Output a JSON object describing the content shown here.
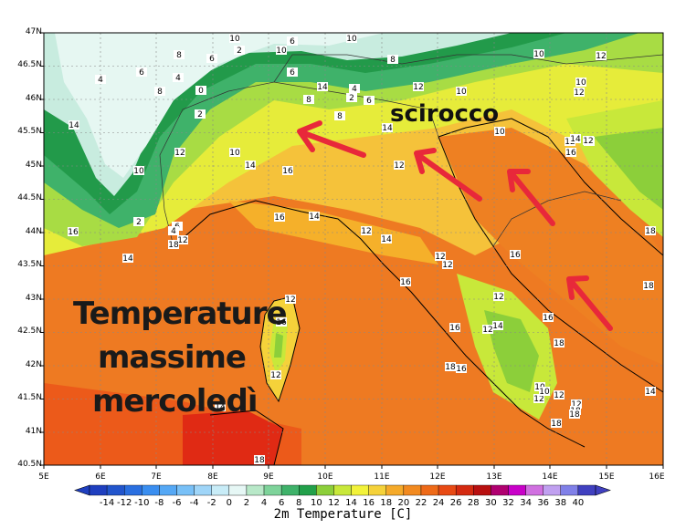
{
  "map": {
    "variable_label": "2m Temperature [C]",
    "lat_ticks": [
      "47N",
      "46.5N",
      "46N",
      "45.5N",
      "45N",
      "44.5N",
      "44N",
      "43.5N",
      "43N",
      "42.5N",
      "42N",
      "41.5N",
      "41N",
      "40.5N"
    ],
    "lon_ticks": [
      "5E",
      "6E",
      "7E",
      "8E",
      "9E",
      "10E",
      "11E",
      "12E",
      "13E",
      "14E",
      "15E",
      "16E"
    ],
    "legend_values": [
      "-14",
      "-12",
      "-10",
      "-8",
      "-6",
      "-4",
      "-2",
      "0",
      "2",
      "4",
      "6",
      "8",
      "10",
      "12",
      "14",
      "16",
      "18",
      "20",
      "22",
      "24",
      "26",
      "28",
      "30",
      "32",
      "34",
      "36",
      "38",
      "40"
    ],
    "legend_colors": [
      "#1f3fbf",
      "#2255cc",
      "#2a6fe0",
      "#3a8ef0",
      "#55a8f5",
      "#78c0f7",
      "#9fd5f8",
      "#c8ecf7",
      "#e6f7f5",
      "#b8e8c8",
      "#7ed39a",
      "#3fb26a",
      "#22a04a",
      "#8ccf3a",
      "#c8e83a",
      "#f2f23a",
      "#f5d23a",
      "#f5aa2a",
      "#f28a20",
      "#ee6a18",
      "#e84a14",
      "#d42a10",
      "#b81010",
      "#b00070",
      "#c800c8",
      "#d070e0",
      "#c0a0f0",
      "#8080e8",
      "#4040c0"
    ],
    "annotations": {
      "title_line1": "Temperature",
      "title_line2": "massime",
      "title_line3": "mercoledì",
      "wind_label": "scirocco"
    },
    "contour_labels": [
      "10",
      "6",
      "10",
      "8",
      "6",
      "2",
      "10",
      "8",
      "10",
      "12",
      "4",
      "0",
      "6",
      "4",
      "8",
      "6",
      "4",
      "2",
      "2",
      "12",
      "8",
      "6",
      "8",
      "10",
      "10",
      "14",
      "10",
      "12",
      "10",
      "16",
      "14",
      "14",
      "14",
      "12",
      "10",
      "12",
      "16",
      "12",
      "14",
      "12",
      "6",
      "2",
      "4",
      "12",
      "14",
      "16",
      "14",
      "12",
      "12",
      "12",
      "12",
      "14",
      "16",
      "16",
      "18",
      "12",
      "16",
      "18",
      "12",
      "10",
      "12",
      "12",
      "12",
      "18",
      "14",
      "18",
      "18",
      "16",
      "12",
      "14",
      "16",
      "18",
      "10",
      "16",
      "14",
      "18",
      "16",
      "18",
      "18",
      "12"
    ]
  }
}
